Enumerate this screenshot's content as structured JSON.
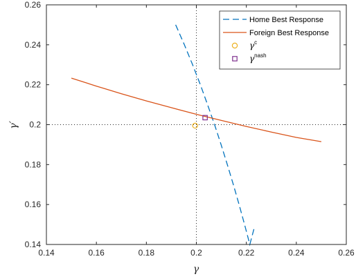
{
  "chart_data": {
    "type": "line",
    "xlabel": "γ",
    "ylabel": "γ′",
    "xlim": [
      0.14,
      0.26
    ],
    "ylim": [
      0.14,
      0.26
    ],
    "xticks": [
      "0.14",
      "0.16",
      "0.18",
      "0.2",
      "0.22",
      "0.24",
      "0.26"
    ],
    "yticks": [
      "0.14",
      "0.16",
      "0.18",
      "0.2",
      "0.22",
      "0.24",
      "0.26"
    ],
    "xtick_values": [
      0.14,
      0.16,
      0.18,
      0.2,
      0.22,
      0.24,
      0.26
    ],
    "ytick_values": [
      0.14,
      0.16,
      0.18,
      0.2,
      0.22,
      0.24,
      0.26
    ],
    "grid": false,
    "legend_position": "top-right",
    "reference_lines": {
      "vertical_x": 0.2,
      "horizontal_y": 0.2,
      "style": "dotted"
    },
    "series": [
      {
        "name": "Home Best Response",
        "style": "dashed",
        "color": "#0072BD",
        "x": [
          0.1917,
          0.1952,
          0.1985,
          0.2016,
          0.2045,
          0.2073,
          0.2099,
          0.2124,
          0.2148,
          0.2171,
          0.2193,
          0.2214,
          0.2233
        ],
        "y": [
          0.25,
          0.24,
          0.23,
          0.22,
          0.21,
          0.2,
          0.19,
          0.18,
          0.17,
          0.16,
          0.15,
          0.14,
          0.149
        ]
      },
      {
        "name": "Foreign Best Response",
        "style": "solid",
        "color": "#D95319",
        "x": [
          0.15,
          0.16,
          0.17,
          0.18,
          0.19,
          0.2,
          0.21,
          0.22,
          0.23,
          0.24,
          0.25
        ],
        "y": [
          0.2233,
          0.2193,
          0.2155,
          0.2119,
          0.2085,
          0.2052,
          0.2021,
          0.1991,
          0.1963,
          0.1936,
          0.1915
        ]
      }
    ],
    "markers": [
      {
        "name": "γc",
        "label_base": "γ",
        "label_sup": "c",
        "symbol": "circle",
        "color": "#EDB120",
        "x": 0.1995,
        "y": 0.1995
      },
      {
        "name": "γnash",
        "label_base": "γ",
        "label_sup": "nash",
        "symbol": "square",
        "color": "#7E2F8E",
        "x": 0.2035,
        "y": 0.2035
      }
    ]
  }
}
